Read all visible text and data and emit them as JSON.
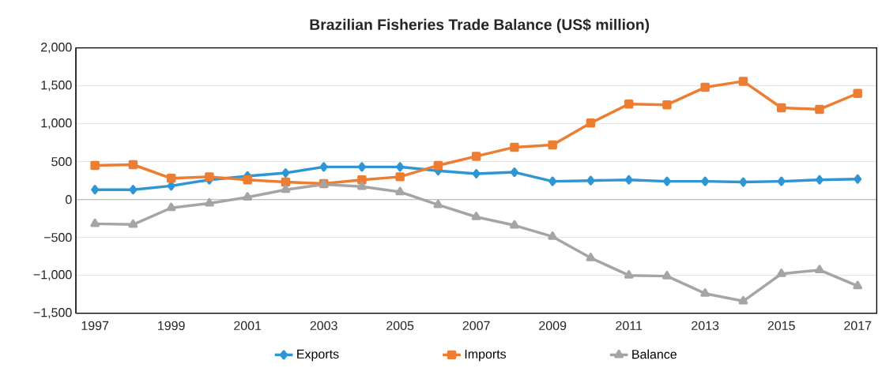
{
  "chart_data": {
    "type": "line",
    "title": "Brazilian Fisheries Trade Balance (US$ million)",
    "x": [
      1997,
      1998,
      1999,
      2000,
      2001,
      2002,
      2003,
      2004,
      2005,
      2006,
      2007,
      2008,
      2009,
      2010,
      2011,
      2012,
      2013,
      2014,
      2015,
      2016,
      2017
    ],
    "xlim": [
      1996.5,
      2017.5
    ],
    "xticks": [
      1997,
      1999,
      2001,
      2003,
      2005,
      2007,
      2009,
      2011,
      2013,
      2015,
      2017
    ],
    "ylim": [
      -1500,
      2000
    ],
    "yticks": [
      {
        "value": -1500,
        "label": "−1,500"
      },
      {
        "value": -1000,
        "label": "−1,000"
      },
      {
        "value": -500,
        "label": "−500"
      },
      0,
      500,
      {
        "value": 1000,
        "label": "1,000"
      },
      {
        "value": 1500,
        "label": "1,500"
      },
      {
        "value": 2000,
        "label": "2,000"
      }
    ],
    "grid": "y",
    "legend": "bottom",
    "series": [
      {
        "name": "Exports",
        "color": "#2e96d4",
        "marker": "diamond",
        "values": [
          130,
          130,
          180,
          260,
          310,
          350,
          430,
          430,
          430,
          380,
          340,
          360,
          240,
          250,
          260,
          240,
          240,
          230,
          240,
          260,
          270
        ]
      },
      {
        "name": "Imports",
        "color": "#ed7d31",
        "marker": "square",
        "values": [
          450,
          460,
          280,
          300,
          260,
          230,
          210,
          260,
          300,
          450,
          570,
          690,
          720,
          1010,
          1260,
          1250,
          1480,
          1560,
          1210,
          1190,
          1400
        ]
      },
      {
        "name": "Balance",
        "color": "#a5a5a5",
        "marker": "triangle",
        "values": [
          -320,
          -330,
          -110,
          -50,
          30,
          130,
          200,
          170,
          100,
          -70,
          -230,
          -340,
          -490,
          -770,
          -1000,
          -1010,
          -1240,
          -1340,
          -980,
          -930,
          -1140
        ]
      }
    ]
  }
}
